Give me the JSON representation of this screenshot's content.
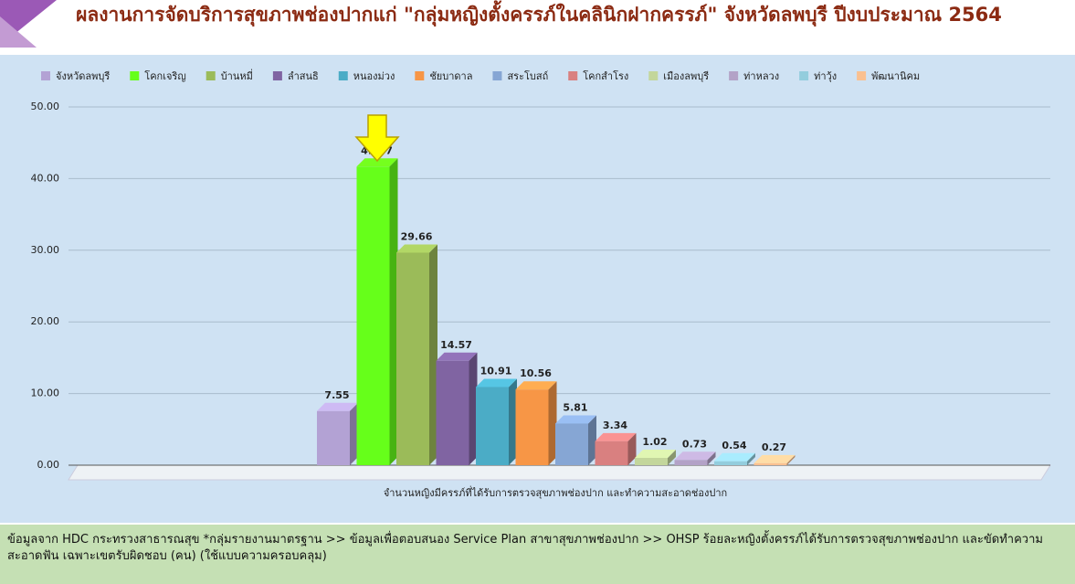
{
  "chart_data": {
    "type": "bar",
    "title": "ผลงานการจัดบริการสุขภาพช่องปากแก่ \"กลุ่มหญิงตั้งครรภ์ในคลินิกฝากครรภ์\" จังหวัดลพบุรี ปีงบประมาณ 2564",
    "categories": [
      "จำนวนหญิงมีครรภ์ที่ได้รับการตรวจสุขภาพช่องปาก และทำความสะอาดช่องปาก"
    ],
    "series": [
      {
        "name": "จังหวัดลพบุรี",
        "color": "#b3a2d4",
        "values": [
          7.55
        ]
      },
      {
        "name": "โคกเจริญ",
        "color": "#66ff1a",
        "values": [
          41.67
        ]
      },
      {
        "name": "บ้านหมี่",
        "color": "#9bbb59",
        "values": [
          29.66
        ]
      },
      {
        "name": "ลำสนธิ",
        "color": "#8064a2",
        "values": [
          14.57
        ]
      },
      {
        "name": "หนองม่วง",
        "color": "#4bacc6",
        "values": [
          10.91
        ]
      },
      {
        "name": "ชัยบาดาล",
        "color": "#f79646",
        "values": [
          10.56
        ]
      },
      {
        "name": "สระโบสถ์",
        "color": "#86a6d4",
        "values": [
          5.81
        ]
      },
      {
        "name": "โคกสำโรง",
        "color": "#d98080",
        "values": [
          3.34
        ]
      },
      {
        "name": "เมืองลพบุรี",
        "color": "#c3d69b",
        "values": [
          1.02
        ]
      },
      {
        "name": "ท่าหลวง",
        "color": "#b3a2c7",
        "values": [
          0.73
        ]
      },
      {
        "name": "ท่าวุ้ง",
        "color": "#93cddd",
        "values": [
          0.54
        ]
      },
      {
        "name": "พัฒนานิคม",
        "color": "#fac090",
        "values": [
          0.27
        ]
      }
    ],
    "ylim": [
      0,
      50
    ],
    "yticks": [
      {
        "value": 0,
        "label": "0.00"
      },
      {
        "value": 10,
        "label": "10.00"
      },
      {
        "value": 20,
        "label": "20.00"
      },
      {
        "value": 30,
        "label": "30.00"
      },
      {
        "value": 40,
        "label": "40.00"
      },
      {
        "value": 50,
        "label": "50.00"
      }
    ],
    "grid": true,
    "legend": "top",
    "source": "ข้อมูลจาก HDC กระทรวงสาธารณสุข  *กลุ่มรายงานมาตรฐาน >> ข้อมูลเพื่อตอบสนอง Service Plan สาขาสุขภาพช่องปาก >> OHSP ร้อยละหญิงตั้งครรภ์ได้รับการตรวจสุขภาพช่องปาก และขัดทำความสะอาดฟัน เฉพาะเขตรับผิดชอบ (คน) (ใช้แบบความครอบคลุม)"
  }
}
